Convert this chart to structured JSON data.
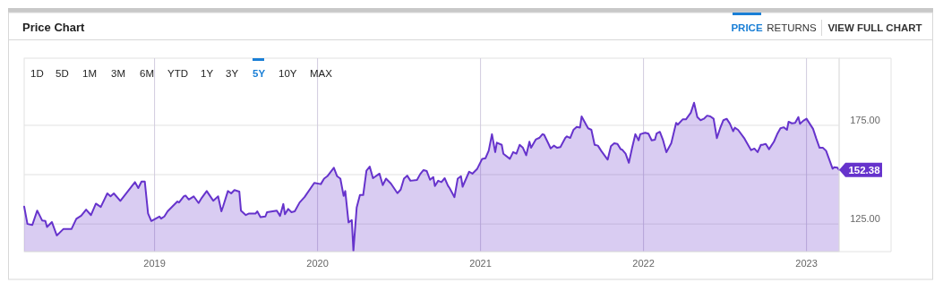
{
  "chart_data": {
    "type": "area",
    "title": "Price Chart",
    "x": [
      2018.2,
      2018.22,
      2018.25,
      2018.28,
      2018.31,
      2018.33,
      2018.34,
      2018.37,
      2018.4,
      2018.44,
      2018.49,
      2018.52,
      2018.55,
      2018.58,
      2018.61,
      2018.64,
      2018.67,
      2018.71,
      2018.73,
      2018.75,
      2018.79,
      2018.88,
      2018.9,
      2018.92,
      2018.94,
      2018.96,
      2018.98,
      2019.03,
      2019.04,
      2019.06,
      2019.08,
      2019.14,
      2019.15,
      2019.18,
      2019.19,
      2019.21,
      2019.24,
      2019.27,
      2019.29,
      2019.32,
      2019.36,
      2019.39,
      2019.41,
      2019.42,
      2019.45,
      2019.47,
      2019.49,
      2019.52,
      2019.53,
      2019.56,
      2019.58,
      2019.62,
      2019.63,
      2019.65,
      2019.68,
      2019.69,
      2019.75,
      2019.77,
      2019.79,
      2019.8,
      2019.82,
      2019.84,
      2019.86,
      2019.89,
      2019.92,
      2019.98,
      2020.02,
      2020.04,
      2020.06,
      2020.1,
      2020.12,
      2020.14,
      2020.16,
      2020.17,
      2020.19,
      2020.21,
      2020.22,
      2020.24,
      2020.26,
      2020.28,
      2020.3,
      2020.32,
      2020.34,
      2020.38,
      2020.4,
      2020.42,
      2020.45,
      2020.49,
      2020.51,
      2020.53,
      2020.55,
      2020.57,
      2020.61,
      2020.63,
      2020.65,
      2020.67,
      2020.69,
      2020.71,
      2020.72,
      2020.74,
      2020.76,
      2020.78,
      2020.8,
      2020.81,
      2020.84,
      2020.86,
      2020.88,
      2020.89,
      2020.93,
      2020.95,
      2020.98,
      2021.01,
      2021.03,
      2021.05,
      2021.07,
      2021.09,
      2021.1,
      2021.13,
      2021.14,
      2021.18,
      2021.2,
      2021.22,
      2021.24,
      2021.26,
      2021.28,
      2021.3,
      2021.31,
      2021.34,
      2021.36,
      2021.38,
      2021.39,
      2021.42,
      2021.43,
      2021.45,
      2021.47,
      2021.49,
      2021.52,
      2021.53,
      2021.55,
      2021.57,
      2021.59,
      2021.61,
      2021.62,
      2021.65,
      2021.66,
      2021.68,
      2021.7,
      2021.72,
      2021.74,
      2021.78,
      2021.8,
      2021.82,
      2021.84,
      2021.86,
      2021.87,
      2021.89,
      2021.91,
      2021.93,
      2021.95,
      2021.97,
      2021.98,
      2022.01,
      2022.03,
      2022.05,
      2022.07,
      2022.08,
      2022.1,
      2022.12,
      2022.14,
      2022.17,
      2022.2,
      2022.21,
      2022.24,
      2022.26,
      2022.29,
      2022.31,
      2022.33,
      2022.35,
      2022.37,
      2022.39,
      2022.41,
      2022.43,
      2022.45,
      2022.47,
      2022.49,
      2022.51,
      2022.53,
      2022.55,
      2022.56,
      2022.58,
      2022.62,
      2022.63,
      2022.66,
      2022.68,
      2022.7,
      2022.72,
      2022.73,
      2022.75,
      2022.77,
      2022.8,
      2022.82,
      2022.84,
      2022.86,
      2022.88,
      2022.89,
      2022.91,
      2022.93,
      2022.95,
      2022.96,
      2022.98,
      2023.0,
      2023.04,
      2023.06,
      2023.08,
      2023.1,
      2023.12,
      2023.14,
      2023.16,
      2023.17,
      2023.19,
      2023.2
    ],
    "series": [
      {
        "color": "#6633cc",
        "values": [
          133.8,
          125,
          124.5,
          131.8,
          126.8,
          126.5,
          123.5,
          126,
          119.2,
          122.4,
          122.4,
          127.6,
          129.2,
          132.3,
          129.5,
          135.3,
          133.6,
          140.5,
          139,
          140.5,
          136.7,
          146.2,
          143.2,
          146.5,
          146.5,
          130.3,
          126.5,
          128.8,
          127.7,
          128.8,
          131.4,
          136.4,
          135.9,
          139.1,
          139.4,
          137.4,
          139,
          135.6,
          138.3,
          141.7,
          136.8,
          139,
          131.4,
          133.8,
          141.7,
          140.5,
          142.2,
          141.4,
          131.8,
          129.5,
          130.3,
          130.3,
          131.4,
          128.5,
          128.8,
          131,
          131.8,
          129.1,
          135.1,
          129.9,
          132.6,
          131,
          131.4,
          135.9,
          138.6,
          145.8,
          145.2,
          148,
          149.2,
          153.5,
          149.2,
          148,
          139.2,
          141.7,
          125.8,
          127,
          111.4,
          133.3,
          139.7,
          139.7,
          152,
          154.1,
          148.2,
          150.5,
          144.7,
          148,
          145.5,
          140.6,
          142.4,
          148,
          149.5,
          146.9,
          147.3,
          150.3,
          152.3,
          151.8,
          147.4,
          148.8,
          144.2,
          146.9,
          146.2,
          148.2,
          144.4,
          143.2,
          138.6,
          148,
          149.2,
          143.9,
          151.5,
          150.5,
          153,
          158,
          158.3,
          162.1,
          170.5,
          161.4,
          166.2,
          165.1,
          160.6,
          158,
          161.4,
          160.6,
          165.1,
          163.6,
          159.8,
          166.7,
          163.6,
          167.9,
          168.6,
          170.5,
          170.2,
          165.1,
          163.3,
          164.7,
          163.6,
          164,
          168.6,
          169.4,
          168.6,
          172.7,
          174.2,
          173.8,
          179.5,
          175,
          173.5,
          172.7,
          165.1,
          164.7,
          162.1,
          157.6,
          164.4,
          165.9,
          165.6,
          162.9,
          162.6,
          160.6,
          156,
          163.6,
          170.5,
          167.4,
          170.5,
          171.2,
          170.8,
          167.4,
          167.7,
          170.8,
          171.7,
          167.4,
          161.4,
          165.9,
          176.2,
          175.3,
          178,
          178,
          181.4,
          186.4,
          179.2,
          177.6,
          178.3,
          179.9,
          179.5,
          178.3,
          168.5,
          173.5,
          177.6,
          178.3,
          175.8,
          172,
          173.8,
          172.7,
          168.2,
          166.7,
          162.4,
          163.2,
          161.4,
          165.1,
          165.1,
          165.6,
          162.9,
          166.7,
          170.5,
          173.5,
          174,
          172.7,
          176.8,
          176,
          176.2,
          179.2,
          175.8,
          177.3,
          178.3,
          173.2,
          168.2,
          163.6,
          163.6,
          162.1,
          157.6,
          153,
          153.8,
          153.5,
          152.38
        ]
      }
    ],
    "xlim": [
      2018.2,
      2023.2
    ],
    "xticks": [
      2019,
      2020,
      2021,
      2022,
      2023
    ],
    "ylim": [
      111,
      209
    ],
    "yticks": [
      {
        "value": 125,
        "label": "125.00"
      },
      {
        "value": 150,
        "label": null
      },
      {
        "value": 175,
        "label": "175.00"
      }
    ],
    "grid": true,
    "annotations": [
      {
        "text": "152.38",
        "x": 2023.2,
        "y": 152.38
      },
      "PRICE",
      "RETURNS",
      "VIEW FULL CHART",
      "1D",
      "5D",
      "1M",
      "3M",
      "6M",
      "YTD",
      "1Y",
      "3Y",
      "5Y",
      "10Y",
      "MAX"
    ]
  }
}
